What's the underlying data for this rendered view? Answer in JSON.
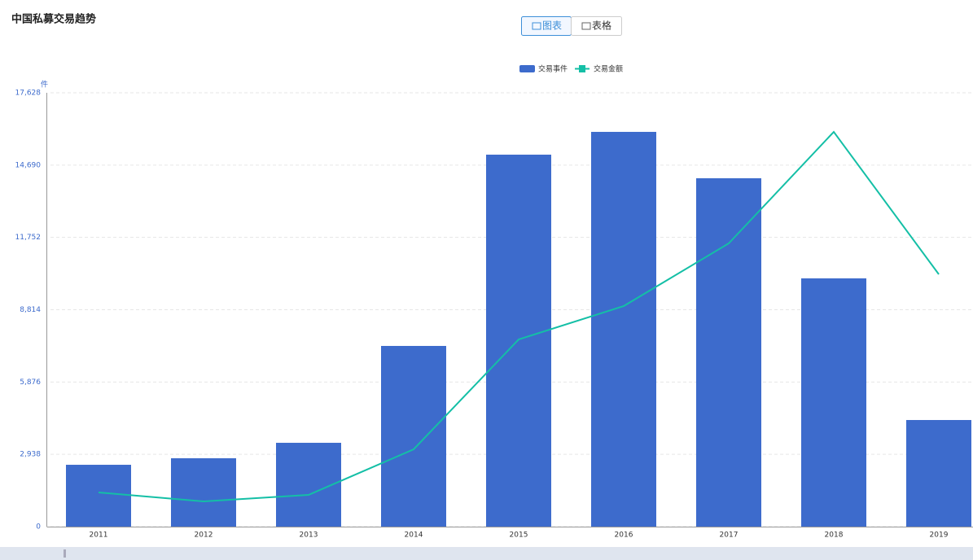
{
  "chart_data": {
    "type": "bar-line",
    "title": "中国私募交易趋势",
    "view_buttons": [
      "图表",
      "表格"
    ],
    "y_unit": "件",
    "categories": [
      "2011",
      "2012",
      "2013",
      "2014",
      "2015",
      "2016",
      "2017",
      "2018",
      "2019"
    ],
    "series": [
      {
        "name": "交易事件",
        "type": "bar",
        "color": "#3d6bcc",
        "values": [
          2513,
          2778,
          3406,
          7342,
          15114,
          16040,
          14155,
          10087,
          4332
        ]
      },
      {
        "name": "交易金额",
        "type": "line",
        "color": "#14bfa6",
        "values": [
          1389,
          1025,
          1290,
          3142,
          7606,
          8962,
          11509,
          16040,
          10252
        ]
      }
    ],
    "ylim": [
      0,
      17628
    ],
    "yticks": [
      0,
      {
        "value": 2938,
        "label": "2,938"
      },
      {
        "value": 5876,
        "label": "5,876"
      },
      {
        "value": 8814,
        "label": "8,814"
      },
      {
        "value": 11752,
        "label": "11,752"
      },
      {
        "value": 14690,
        "label": "14,690"
      },
      {
        "value": 17628,
        "label": "17,628"
      }
    ],
    "grid": true
  }
}
